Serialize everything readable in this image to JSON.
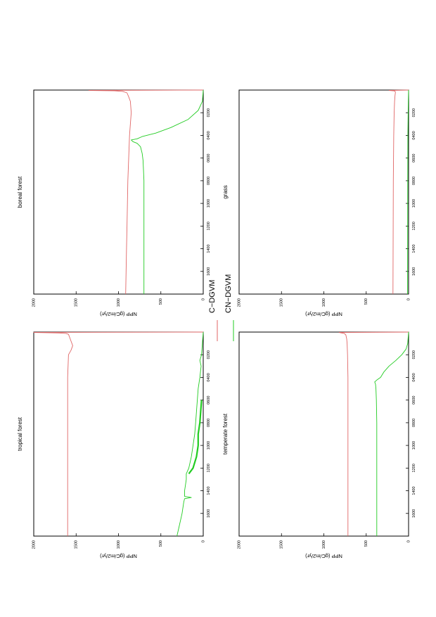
{
  "legend": [
    {
      "label": "C−DGVM",
      "color": "#e06666"
    },
    {
      "label": "CN−DGVM",
      "color": "#22cc22"
    }
  ],
  "chart_data": [
    {
      "type": "line",
      "id": "boreal",
      "title": "boreal forest",
      "ylabel": "NPP  (gC/m2/yr)",
      "xlim": [
        0,
        1800
      ],
      "ylim": [
        0,
        2000
      ],
      "xticks": [
        200,
        400,
        600,
        800,
        1000,
        1200,
        1400,
        1600
      ],
      "xtick_labels": [
        "0200",
        "0400",
        "0600",
        "0800",
        "1000",
        "1200",
        "1400",
        "1600"
      ],
      "yticks": [
        0,
        500,
        1000,
        1500,
        2000
      ],
      "ytick_labels": [
        "0",
        "500",
        "1000",
        "1500",
        "2000"
      ],
      "series": [
        {
          "name": "C−DGVM",
          "color": "#e06666",
          "x": [
            0,
            3,
            6,
            12,
            25,
            60,
            100,
            200,
            400,
            600,
            800,
            1000,
            1200,
            1400,
            1600,
            1800
          ],
          "y": [
            0,
            1350,
            1050,
            950,
            900,
            880,
            860,
            850,
            870,
            880,
            890,
            895,
            900,
            905,
            910,
            915
          ]
        },
        {
          "name": "CN−DGVM",
          "color": "#22cc22",
          "x": [
            0,
            100,
            180,
            260,
            330,
            380,
            410,
            430,
            440,
            455,
            470,
            500,
            560,
            620,
            700,
            800,
            1000,
            1300,
            1600,
            1800
          ],
          "y": [
            0,
            10,
            60,
            180,
            380,
            560,
            720,
            780,
            850,
            830,
            780,
            740,
            720,
            710,
            705,
            700,
            700,
            700,
            700,
            700
          ]
        }
      ]
    },
    {
      "type": "line",
      "id": "tropical",
      "title": "tropical forest",
      "ylabel": "NPP  (gC/m2/yr)",
      "xlim": [
        0,
        1800
      ],
      "ylim": [
        0,
        2000
      ],
      "xticks": [
        200,
        400,
        600,
        800,
        1000,
        1200,
        1400,
        1600
      ],
      "xtick_labels": [
        "0200",
        "0400",
        "0600",
        "0800",
        "1000",
        "1200",
        "1400",
        "1600"
      ],
      "yticks": [
        0,
        500,
        1000,
        1500,
        2000
      ],
      "ytick_labels": [
        "0",
        "500",
        "1000",
        "1500",
        "2000"
      ],
      "series": [
        {
          "name": "C−DGVM",
          "color": "#e06666",
          "x": [
            0,
            3,
            5,
            8,
            12,
            20,
            40,
            80,
            120,
            160,
            200,
            400,
            600,
            800,
            1000,
            1200,
            1400,
            1600,
            1800
          ],
          "y": [
            0,
            2000,
            1900,
            1700,
            1620,
            1590,
            1580,
            1560,
            1540,
            1560,
            1590,
            1600,
            1600,
            1600,
            1600,
            1600,
            1600,
            1600,
            1600
          ]
        },
        {
          "name": "CN−DGVM",
          "color": "#22cc22",
          "x": [
            0,
            100,
            200,
            250,
            300,
            400,
            500,
            600,
            700,
            800,
            900,
            1000,
            1100,
            1200,
            1250,
            1300,
            1400,
            1450,
            1460,
            1470,
            1500,
            1600,
            1700,
            1800
          ],
          "y": [
            0,
            10,
            20,
            40,
            25,
            40,
            60,
            70,
            80,
            90,
            100,
            120,
            140,
            170,
            200,
            200,
            220,
            220,
            140,
            220,
            230,
            250,
            280,
            310
          ]
        },
        {
          "name": "CN−DGVM",
          "color": "#22cc22",
          "x": [
            600,
            700,
            800,
            900,
            1000,
            1100,
            1200,
            1250
          ],
          "y": [
            20,
            30,
            40,
            60,
            60,
            80,
            120,
            170
          ]
        }
      ]
    },
    {
      "type": "line",
      "id": "grass",
      "title": "grass",
      "ylabel": "NPP  (gC/m2/yr)",
      "xlim": [
        0,
        1800
      ],
      "ylim": [
        0,
        2000
      ],
      "xticks": [
        200,
        400,
        600,
        800,
        1000,
        1200,
        1400,
        1600
      ],
      "xtick_labels": [
        "0200",
        "0400",
        "0600",
        "0800",
        "1000",
        "1200",
        "1400",
        "1600"
      ],
      "yticks": [
        0,
        500,
        1000,
        1500,
        2000
      ],
      "ytick_labels": [
        "0",
        "500",
        "1000",
        "1500",
        "2000"
      ],
      "series": [
        {
          "name": "C−DGVM",
          "color": "#e06666",
          "x": [
            0,
            3,
            6,
            10,
            20,
            50,
            100,
            200,
            400,
            800,
            1200,
            1600,
            1800
          ],
          "y": [
            0,
            230,
            180,
            160,
            155,
            160,
            165,
            170,
            175,
            180,
            182,
            183,
            184
          ]
        },
        {
          "name": "CN−DGVM",
          "color": "#22cc22",
          "x": [
            0,
            100,
            200,
            400,
            800,
            1200,
            1600,
            1800
          ],
          "y": [
            0,
            3,
            5,
            8,
            10,
            11,
            12,
            12
          ]
        }
      ]
    },
    {
      "type": "line",
      "id": "temperate",
      "title": "temperate forest",
      "ylabel": "NPP  (gC/m2/yr)",
      "xlim": [
        0,
        1800
      ],
      "ylim": [
        0,
        2000
      ],
      "xticks": [
        200,
        400,
        600,
        800,
        1000,
        1200,
        1400,
        1600
      ],
      "xtick_labels": [
        "0200",
        "0400",
        "0600",
        "0800",
        "1000",
        "1200",
        "1400",
        "1600"
      ],
      "yticks": [
        0,
        500,
        1000,
        1500,
        2000
      ],
      "ytick_labels": [
        "0",
        "500",
        "1000",
        "1500",
        "2000"
      ],
      "series": [
        {
          "name": "C−DGVM",
          "color": "#e06666",
          "x": [
            0,
            3,
            6,
            12,
            25,
            60,
            100,
            200,
            400,
            600,
            800,
            1000,
            1200,
            1400,
            1600,
            1800
          ],
          "y": [
            0,
            820,
            800,
            760,
            740,
            730,
            725,
            720,
            715,
            715,
            715,
            715,
            715,
            715,
            715,
            715
          ]
        },
        {
          "name": "CN−DGVM",
          "color": "#22cc22",
          "x": [
            0,
            100,
            150,
            200,
            250,
            300,
            350,
            400,
            420,
            440,
            460,
            500,
            600,
            800,
            1000,
            1200,
            1400,
            1600,
            1800
          ],
          "y": [
            0,
            10,
            30,
            80,
            150,
            230,
            290,
            330,
            370,
            400,
            390,
            385,
            380,
            375,
            375,
            375,
            375,
            375,
            375
          ]
        }
      ]
    }
  ]
}
